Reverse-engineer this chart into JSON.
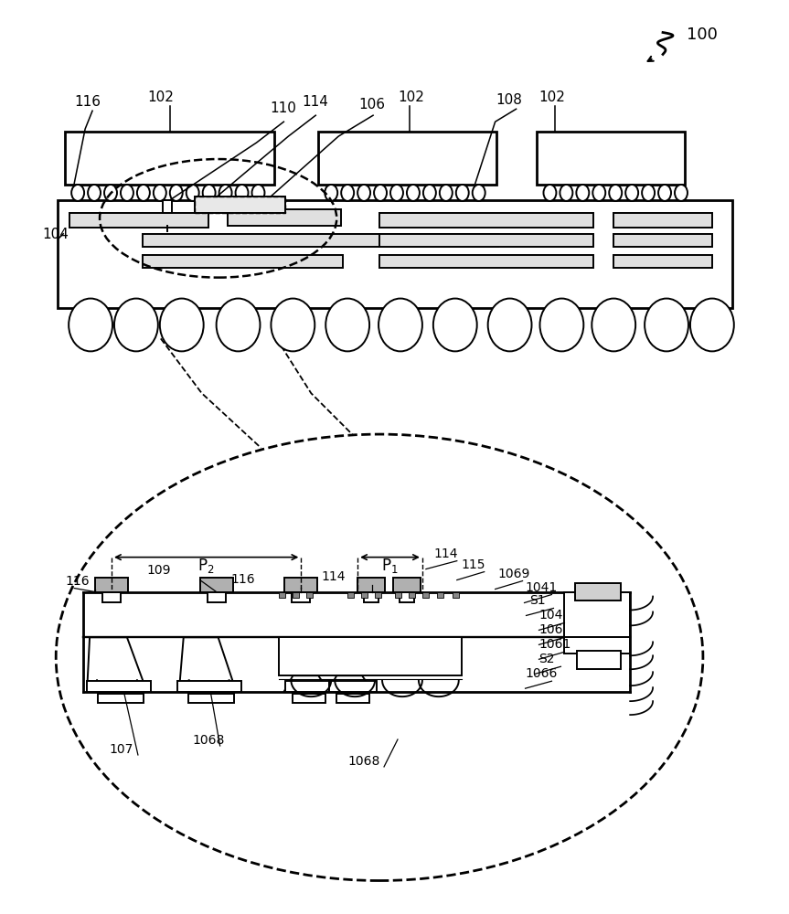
{
  "bg_color": "#ffffff",
  "line_color": "#000000",
  "fig_width": 8.63,
  "fig_height": 10.0,
  "dpi": 100,
  "lw": 1.4,
  "lw_thick": 2.0
}
